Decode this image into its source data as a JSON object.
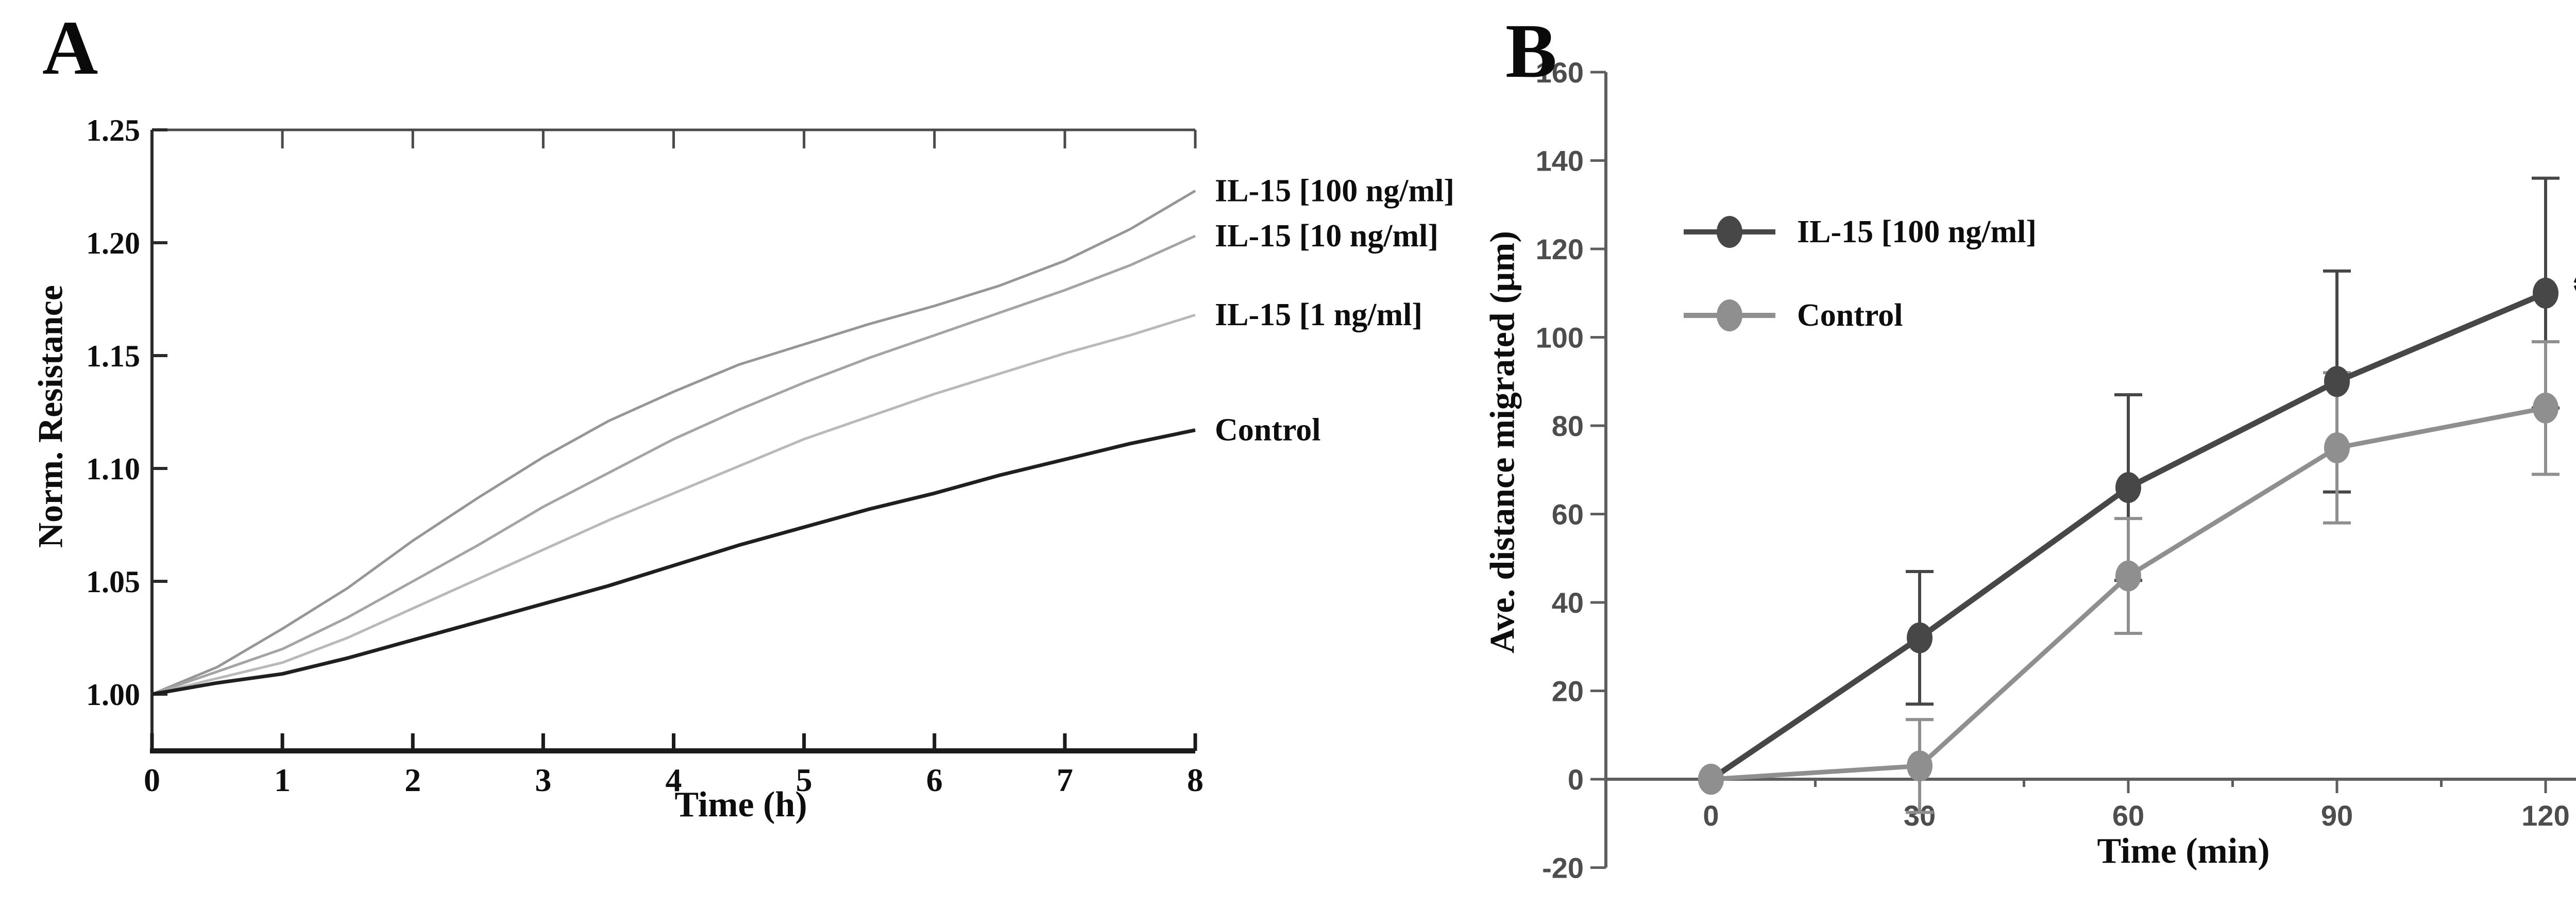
{
  "chart_data": [
    {
      "type": "line",
      "panel_label": "A",
      "title": "",
      "xlabel": "Time (h)",
      "ylabel": "Norm. Resistance",
      "xlim": [
        0,
        8
      ],
      "ylim": [
        0.975,
        1.25
      ],
      "x_ticks": [
        "0",
        "1",
        "2",
        "3",
        "4",
        "5",
        "6",
        "7",
        "8"
      ],
      "x_tick_values": [
        0,
        1,
        2,
        3,
        4,
        5,
        6,
        7,
        8
      ],
      "y_ticks": [
        "1.00",
        "1.05",
        "1.10",
        "1.15",
        "1.20",
        "1.25"
      ],
      "y_tick_values": [
        1.0,
        1.05,
        1.1,
        1.15,
        1.2,
        1.25
      ],
      "grid": false,
      "legend_position": "curve-end-labels-right",
      "x": [
        0,
        0.5,
        1,
        1.5,
        2,
        2.5,
        3,
        3.5,
        4,
        4.5,
        5,
        5.5,
        6,
        6.5,
        7,
        7.5,
        8
      ],
      "series": [
        {
          "name": "IL-15 [100 ng/ml]",
          "color": "#969696",
          "values": [
            1.0,
            1.012,
            1.029,
            1.047,
            1.068,
            1.087,
            1.105,
            1.121,
            1.134,
            1.146,
            1.155,
            1.164,
            1.172,
            1.181,
            1.192,
            1.206,
            1.223
          ]
        },
        {
          "name": "IL-15 [10 ng/ml]",
          "color": "#a4a4a4",
          "values": [
            1.0,
            1.01,
            1.02,
            1.034,
            1.05,
            1.066,
            1.083,
            1.098,
            1.113,
            1.126,
            1.138,
            1.149,
            1.159,
            1.169,
            1.179,
            1.19,
            1.203
          ]
        },
        {
          "name": "IL-15 [1 ng/ml]",
          "color": "#b9b9b9",
          "values": [
            1.0,
            1.007,
            1.014,
            1.025,
            1.038,
            1.051,
            1.064,
            1.077,
            1.089,
            1.101,
            1.113,
            1.123,
            1.133,
            1.142,
            1.151,
            1.159,
            1.168
          ]
        },
        {
          "name": "Control",
          "color": "#1f1f1f",
          "values": [
            1.0,
            1.005,
            1.009,
            1.016,
            1.024,
            1.032,
            1.04,
            1.048,
            1.057,
            1.066,
            1.074,
            1.082,
            1.089,
            1.097,
            1.104,
            1.111,
            1.117
          ]
        }
      ]
    },
    {
      "type": "line",
      "panel_label": "B",
      "title": "",
      "xlabel": "Time (min)",
      "ylabel": "Ave. distance migrated (µm)",
      "xlim": [
        0,
        120
      ],
      "ylim": [
        -20,
        160
      ],
      "x_ticks": [
        "0",
        "30",
        "60",
        "90",
        "120"
      ],
      "x_tick_values": [
        0,
        30,
        60,
        90,
        120
      ],
      "x_minor_tick_values": [
        15,
        45,
        75,
        105,
        135
      ],
      "y_ticks": [
        "160",
        "140",
        "120",
        "100",
        "80",
        "60",
        "40",
        "20",
        "0",
        "-20"
      ],
      "y_tick_values": [
        160,
        140,
        120,
        100,
        80,
        60,
        40,
        20,
        0,
        -20
      ],
      "grid": false,
      "legend_position": "upper-left-inside",
      "x": [
        0,
        30,
        60,
        90,
        120
      ],
      "series": [
        {
          "name": "IL-15 [100 ng/ml]",
          "color": "#474747",
          "marker": "circle",
          "values": [
            0,
            32,
            66,
            90,
            110
          ],
          "err_lo": [
            0,
            17,
            45,
            65,
            84
          ],
          "err_hi": [
            0,
            47,
            87,
            115,
            136
          ]
        },
        {
          "name": "Control",
          "color": "#8f8f8f",
          "marker": "circle",
          "values": [
            0,
            3,
            46,
            75,
            84
          ],
          "err_lo": [
            0,
            -7.5,
            33,
            58,
            69
          ],
          "err_hi": [
            0,
            13.5,
            59,
            92,
            99
          ]
        }
      ],
      "annotations": [
        {
          "text": "***",
          "meaning": "significance-marker",
          "near": "IL-15 [100 ng/ml] at 120 min"
        }
      ]
    }
  ]
}
